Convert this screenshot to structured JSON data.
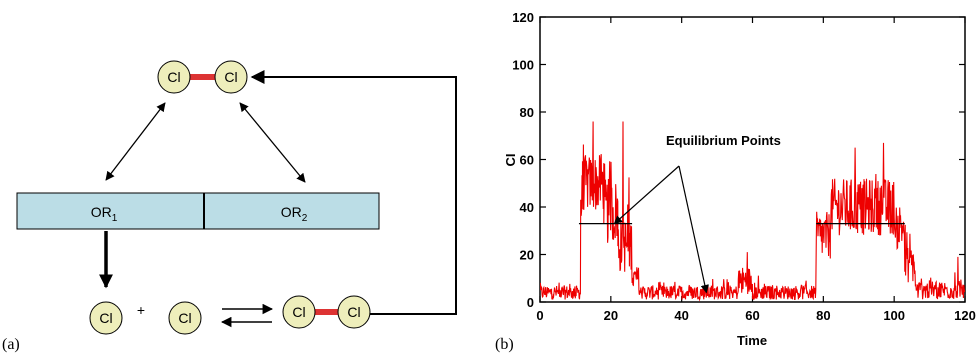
{
  "panel_a": {
    "label": "(a)",
    "molecule_label": "Cl",
    "plus": "+",
    "operator_1": "OR",
    "operator_1_sub": "1",
    "operator_2": "OR",
    "operator_2_sub": "2",
    "colors": {
      "molecule_fill": "#eeeebb",
      "bond": "#dd3333",
      "operator_fill": "#bbdde6"
    }
  },
  "panel_b": {
    "label": "(b)",
    "annotation": "Equilibrium Points",
    "chart_data": {
      "type": "line",
      "title": "",
      "xlabel": "Time",
      "ylabel": "CI",
      "xlim": [
        0,
        120
      ],
      "ylim": [
        0,
        120
      ],
      "xticks": [
        0,
        20,
        40,
        60,
        80,
        100,
        120
      ],
      "yticks": [
        0,
        20,
        40,
        60,
        80,
        100,
        120
      ],
      "grid": false,
      "series_color": "#ee0000",
      "trace_segments": [
        {
          "x_start": 0,
          "x_end": 11.5,
          "base": 4,
          "noise": 3
        },
        {
          "x_start": 11.5,
          "x_end": 12,
          "base": 40,
          "noise": 12
        },
        {
          "x_start": 12,
          "x_end": 18,
          "base": 50,
          "noise": 12
        },
        {
          "x_start": 18,
          "x_end": 22,
          "base": 38,
          "noise": 14
        },
        {
          "x_start": 22,
          "x_end": 26,
          "base": 24,
          "noise": 12
        },
        {
          "x_start": 26,
          "x_end": 28,
          "base": 10,
          "noise": 5
        },
        {
          "x_start": 28,
          "x_end": 56,
          "base": 4,
          "noise": 3
        },
        {
          "x_start": 56,
          "x_end": 60,
          "base": 9,
          "noise": 6
        },
        {
          "x_start": 60,
          "x_end": 78,
          "base": 4,
          "noise": 3
        },
        {
          "x_start": 78,
          "x_end": 82,
          "base": 28,
          "noise": 10
        },
        {
          "x_start": 82,
          "x_end": 100,
          "base": 40,
          "noise": 12
        },
        {
          "x_start": 100,
          "x_end": 103,
          "base": 32,
          "noise": 10
        },
        {
          "x_start": 103,
          "x_end": 106,
          "base": 16,
          "noise": 8
        },
        {
          "x_start": 106,
          "x_end": 120,
          "base": 5,
          "noise": 4
        }
      ],
      "spikes": [
        {
          "x": 15,
          "y": 76
        },
        {
          "x": 20,
          "y": 59
        },
        {
          "x": 23.5,
          "y": 76
        },
        {
          "x": 58.5,
          "y": 21
        },
        {
          "x": 89,
          "y": 65
        },
        {
          "x": 97,
          "y": 67
        },
        {
          "x": 118,
          "y": 19
        }
      ],
      "equilibrium_lines": [
        {
          "x1": 11,
          "x2": 26,
          "y": 33
        },
        {
          "x1": 78,
          "x2": 103,
          "y": 33
        }
      ],
      "annotation_arrow_targets": [
        {
          "x": 21,
          "y": 33
        },
        {
          "x": 47,
          "y": 4
        }
      ]
    }
  }
}
